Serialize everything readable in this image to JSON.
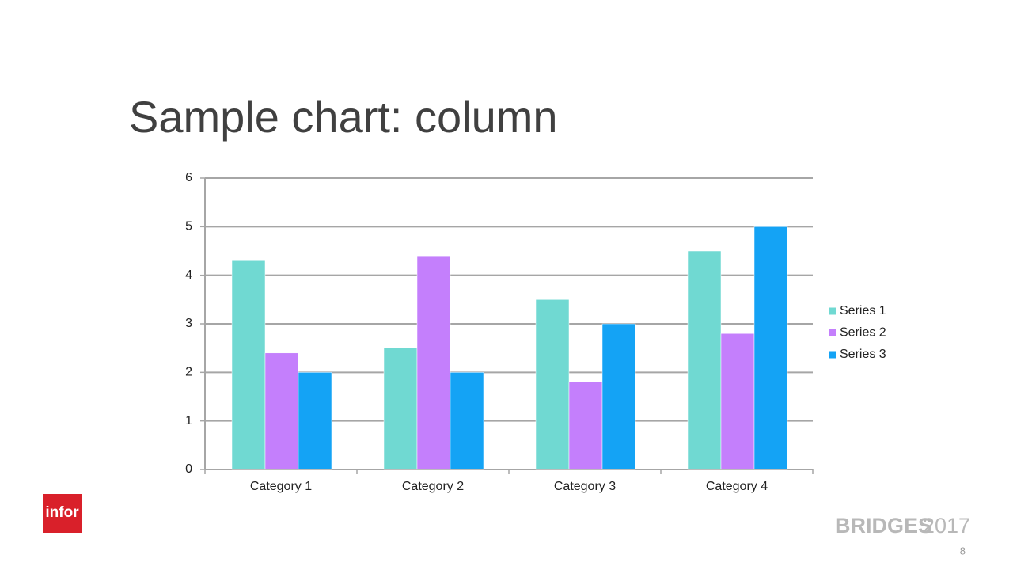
{
  "chart_data": {
    "type": "bar",
    "title": "Sample chart: column",
    "categories": [
      "Category 1",
      "Category 2",
      "Category 3",
      "Category 4"
    ],
    "series": [
      {
        "name": "Series 1",
        "color": "#70d9d2",
        "values": [
          4.3,
          2.5,
          3.5,
          4.5
        ]
      },
      {
        "name": "Series 2",
        "color": "#c47ffc",
        "values": [
          2.4,
          4.4,
          1.8,
          2.8
        ]
      },
      {
        "name": "Series 3",
        "color": "#14a3f5",
        "values": [
          2,
          2,
          3,
          5
        ]
      }
    ],
    "ylim": [
      0,
      6
    ],
    "yticks": [
      0,
      1,
      2,
      3,
      4,
      5,
      6
    ],
    "grid": true,
    "legend": "right"
  },
  "slide": {
    "logo": "infor",
    "event": "BRIDGES",
    "year": "2017",
    "page_number": "8"
  }
}
